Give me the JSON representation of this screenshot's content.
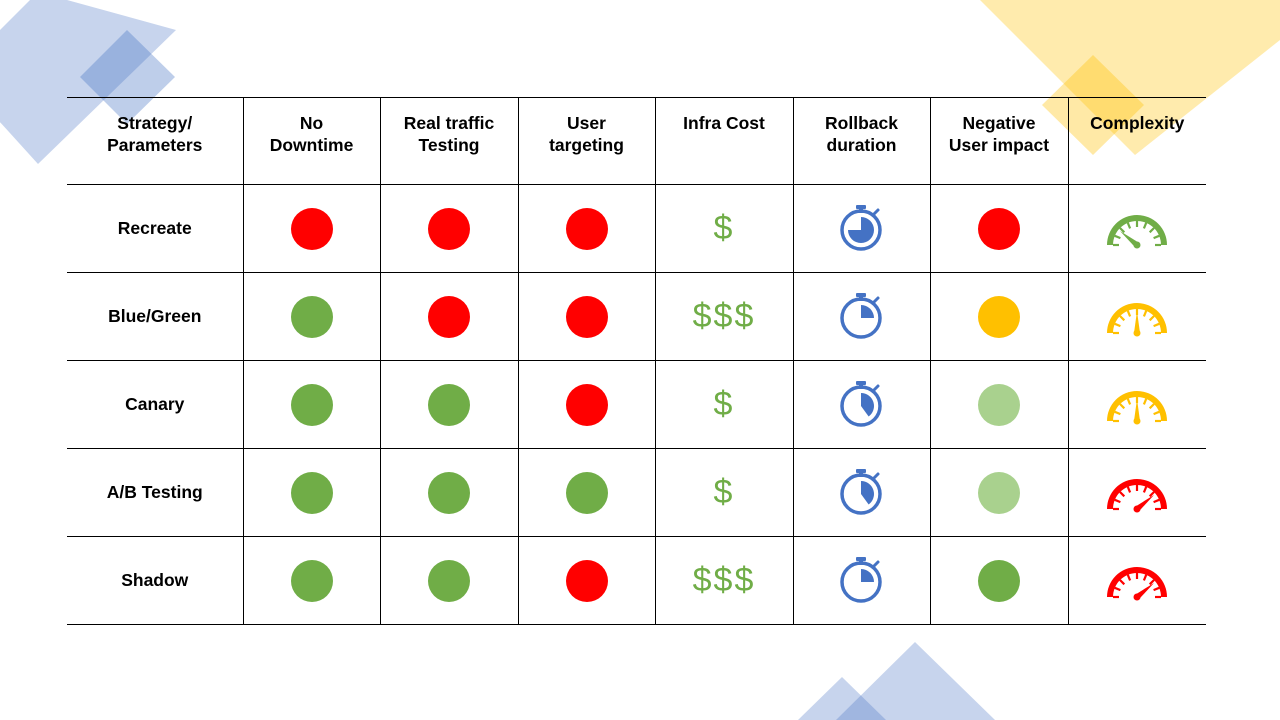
{
  "colors": {
    "red": "#ff0000",
    "green": "#70ad47",
    "light_green": "#a9d18e",
    "yellow": "#ffc000",
    "blue": "#4472c4",
    "deco_blue": "#4472c4",
    "deco_yellow": "#ffc000"
  },
  "table": {
    "headers": [
      {
        "label": "Strategy/\nParameters"
      },
      {
        "label": "No\nDowntime"
      },
      {
        "label": "Real traffic\nTesting"
      },
      {
        "label": "User\ntargeting"
      },
      {
        "label": "Infra Cost"
      },
      {
        "label": "Rollback\nduration"
      },
      {
        "label": "Negative\nUser impact"
      },
      {
        "label": "Complexity"
      }
    ],
    "rows": [
      {
        "strategy": "Recreate",
        "no_downtime": "red",
        "real_traffic": "red",
        "user_targeting": "red",
        "infra_cost": "$",
        "rollback_fill": 0.75,
        "user_impact": "red",
        "complexity": "low"
      },
      {
        "strategy": "Blue/Green",
        "no_downtime": "green",
        "real_traffic": "red",
        "user_targeting": "red",
        "infra_cost": "$$$",
        "rollback_fill": 0.25,
        "user_impact": "yellow",
        "complexity": "medium"
      },
      {
        "strategy": "Canary",
        "no_downtime": "green",
        "real_traffic": "green",
        "user_targeting": "red",
        "infra_cost": "$",
        "rollback_fill": 0.4,
        "user_impact": "light_green",
        "complexity": "medium"
      },
      {
        "strategy": "A/B Testing",
        "no_downtime": "green",
        "real_traffic": "green",
        "user_targeting": "green",
        "infra_cost": "$",
        "rollback_fill": 0.4,
        "user_impact": "light_green",
        "complexity": "high"
      },
      {
        "strategy": "Shadow",
        "no_downtime": "green",
        "real_traffic": "green",
        "user_targeting": "red",
        "infra_cost": "$$$",
        "rollback_fill": 0.25,
        "user_impact": "green",
        "complexity": "high"
      }
    ]
  }
}
